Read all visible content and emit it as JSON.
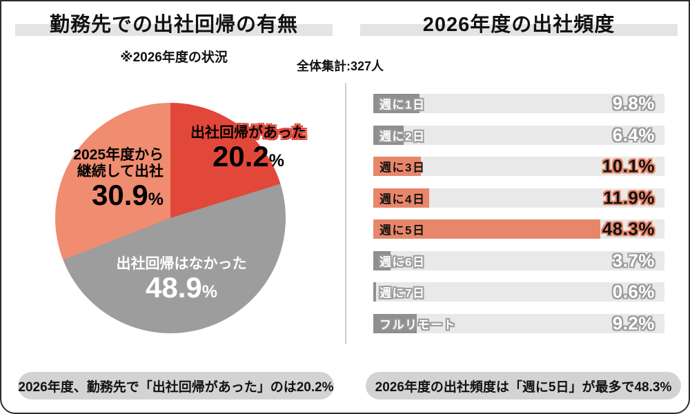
{
  "left_panel": {
    "title": "勤務先での出社回帰の有無",
    "note": "※2026年度の状況",
    "caption": "2026年度、勤務先で「出社回帰があった」のは20.2%"
  },
  "right_panel": {
    "title": "2026年度の出社頻度",
    "caption": "2026年度の出社頻度は「週に5日」が最多で48.3%"
  },
  "survey": {
    "total_label": "全体集計:327人"
  },
  "colors": {
    "red": "#E2483A",
    "pie_salmon": "#F08C70",
    "pie_gray": "#9D9D9D",
    "bar_salmon": "#E8866A",
    "bar_gray": "#8F8F8F",
    "bar_track": "#E9E9E9",
    "title_highlight": "#E4E4E4",
    "caption_pill": "#D3D3D3",
    "divider": "#CCCCCC"
  },
  "chart_data": [
    {
      "type": "pie",
      "title": "勤務先での出社回帰の有無",
      "note": "※2026年度の状況",
      "unit": "%",
      "start": "top",
      "direction": "clockwise",
      "slices": [
        {
          "label": "出社回帰があった",
          "value": 20.2,
          "color": "#E2483A"
        },
        {
          "label": "出社回帰はなかった",
          "value": 48.9,
          "color": "#9D9D9D"
        },
        {
          "label": "2025年度から継続して出社",
          "label_lines": [
            "2025年度から",
            "継続して出社"
          ],
          "value": 30.9,
          "color": "#F08C70"
        }
      ]
    },
    {
      "type": "bar",
      "orientation": "horizontal",
      "title": "2026年度の出社頻度",
      "categories": [
        "週に1日",
        "週に2日",
        "週に3日",
        "週に4日",
        "週に5日",
        "週に6日",
        "週に7日",
        "フルリモート"
      ],
      "values": [
        9.8,
        6.4,
        10.1,
        11.9,
        48.3,
        3.7,
        0.6,
        9.2
      ],
      "value_suffix": "%",
      "bar_styles": [
        "gray",
        "gray",
        "salmon",
        "salmon",
        "salmon",
        "gray",
        "gray",
        "gray"
      ],
      "axis_max": 62,
      "grid": false,
      "legend": false
    }
  ]
}
